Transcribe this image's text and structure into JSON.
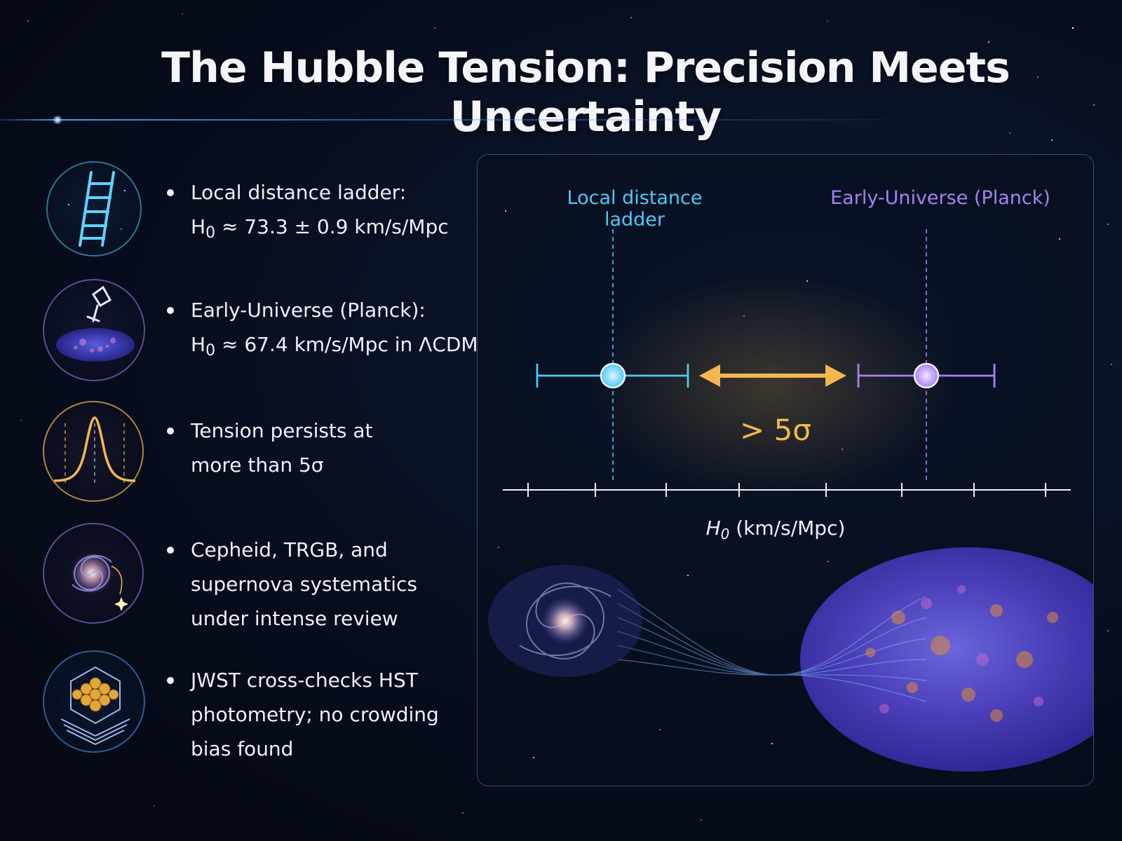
{
  "title": "The Hubble Tension: Precision Meets Uncertainty",
  "items": [
    {
      "icon": "ladder-icon",
      "line1": "Local distance ladder:",
      "h": "H",
      "sub": "0",
      "line2_rest": " ≈ 73.3 ± 0.9 km/s/Mpc"
    },
    {
      "icon": "telescope-cmb-icon",
      "line1": "Early-Universe (Planck):",
      "h": "H",
      "sub": "0",
      "line2_rest": " ≈ 67.4 km/s/Mpc in ΛCDM"
    },
    {
      "icon": "gaussian-curve-icon",
      "line1": "Tension persists at",
      "line2": "more than 5σ"
    },
    {
      "icon": "spiral-galaxy-icon",
      "line1": "Cepheid, TRGB, and",
      "line2": "supernova systematics",
      "line3": "under intense review"
    },
    {
      "icon": "jwst-mirror-icon",
      "line1": "JWST cross-checks HST",
      "line2": "photometry; no crowding",
      "line3": "bias found"
    }
  ],
  "diagram": {
    "local_label": "Local distance ladder",
    "early_label": "Early-Universe (Planck)",
    "tension_label": "> 5σ",
    "axis_h": "H",
    "axis_sub": "0",
    "axis_unit": " (km/s/Mpc)"
  },
  "colors": {
    "local": "#4ec9f5",
    "early": "#a880f2",
    "tension": "#f2b84f",
    "background": "#070d1d"
  }
}
